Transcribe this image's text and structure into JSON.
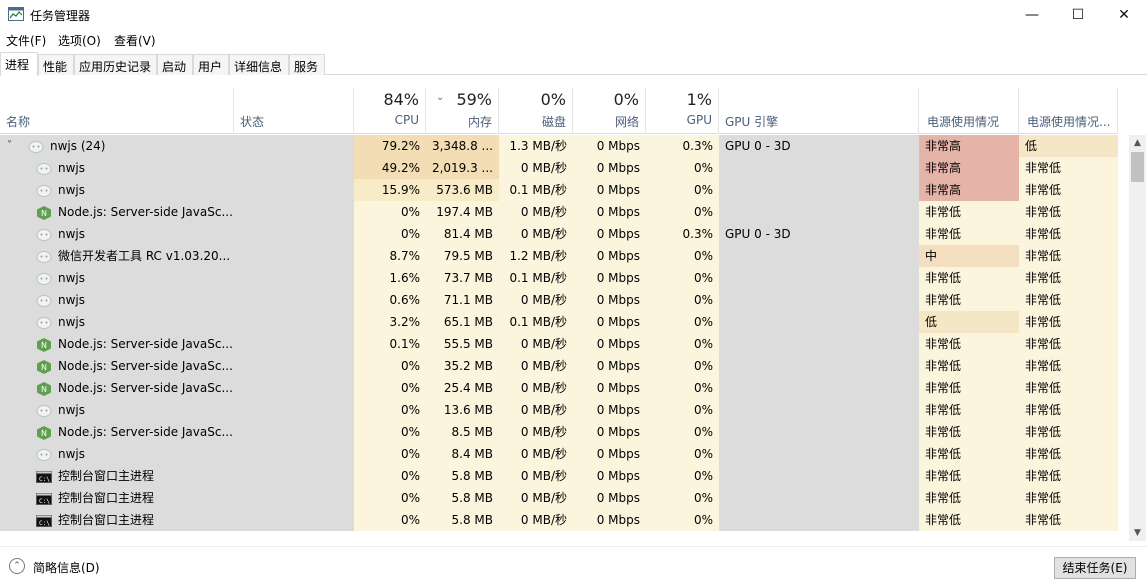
{
  "window": {
    "title": "任务管理器"
  },
  "window_controls": {
    "minimize": "—",
    "maximize": "☐",
    "close": "✕"
  },
  "menu": [
    "文件(F)",
    "选项(O)",
    "查看(V)"
  ],
  "tabs": [
    "进程",
    "性能",
    "应用历史记录",
    "启动",
    "用户",
    "详细信息",
    "服务"
  ],
  "header": {
    "name": "名称",
    "status": "状态",
    "cpu_pct": "84%",
    "cpu": "CPU",
    "mem_pct": "59%",
    "mem": "内存",
    "disk_pct": "0%",
    "disk": "磁盘",
    "net_pct": "0%",
    "net": "网络",
    "gpu_pct": "1%",
    "gpu": "GPU",
    "gpu_engine": "GPU 引擎",
    "power": "电源使用情况",
    "power_trend": "电源使用情况..."
  },
  "rows": [
    {
      "name": "nwjs (24)",
      "icon": "nwjs-icon",
      "expanded": true,
      "cpu": "79.2%",
      "mem": "3,348.8 ...",
      "disk": "1.3 MB/秒",
      "net": "0 Mbps",
      "gpu": "0.3%",
      "gpu_engine": "GPU 0 - 3D",
      "power": "非常高",
      "power_trend": "低"
    },
    {
      "name": "nwjs",
      "icon": "nwjs-icon",
      "cpu": "49.2%",
      "mem": "2,019.3 ...",
      "disk": "0 MB/秒",
      "net": "0 Mbps",
      "gpu": "0%",
      "gpu_engine": "",
      "power": "非常高",
      "power_trend": "非常低"
    },
    {
      "name": "nwjs",
      "icon": "nwjs-icon",
      "cpu": "15.9%",
      "mem": "573.6 MB",
      "disk": "0.1 MB/秒",
      "net": "0 Mbps",
      "gpu": "0%",
      "gpu_engine": "",
      "power": "非常高",
      "power_trend": "非常低"
    },
    {
      "name": "Node.js: Server-side JavaSc...",
      "icon": "nodejs-icon",
      "cpu": "0%",
      "mem": "197.4 MB",
      "disk": "0 MB/秒",
      "net": "0 Mbps",
      "gpu": "0%",
      "gpu_engine": "",
      "power": "非常低",
      "power_trend": "非常低"
    },
    {
      "name": "nwjs",
      "icon": "nwjs-icon",
      "cpu": "0%",
      "mem": "81.4 MB",
      "disk": "0 MB/秒",
      "net": "0 Mbps",
      "gpu": "0.3%",
      "gpu_engine": "GPU 0 - 3D",
      "power": "非常低",
      "power_trend": "非常低"
    },
    {
      "name": "微信开发者工具 RC v1.03.20...",
      "icon": "nwjs-icon",
      "cpu": "8.7%",
      "mem": "79.5 MB",
      "disk": "1.2 MB/秒",
      "net": "0 Mbps",
      "gpu": "0%",
      "gpu_engine": "",
      "power": "中",
      "power_trend": "非常低"
    },
    {
      "name": "nwjs",
      "icon": "nwjs-icon",
      "cpu": "1.6%",
      "mem": "73.7 MB",
      "disk": "0.1 MB/秒",
      "net": "0 Mbps",
      "gpu": "0%",
      "gpu_engine": "",
      "power": "非常低",
      "power_trend": "非常低"
    },
    {
      "name": "nwjs",
      "icon": "nwjs-icon",
      "cpu": "0.6%",
      "mem": "71.1 MB",
      "disk": "0 MB/秒",
      "net": "0 Mbps",
      "gpu": "0%",
      "gpu_engine": "",
      "power": "非常低",
      "power_trend": "非常低"
    },
    {
      "name": "nwjs",
      "icon": "nwjs-icon",
      "cpu": "3.2%",
      "mem": "65.1 MB",
      "disk": "0.1 MB/秒",
      "net": "0 Mbps",
      "gpu": "0%",
      "gpu_engine": "",
      "power": "低",
      "power_trend": "非常低"
    },
    {
      "name": "Node.js: Server-side JavaSc...",
      "icon": "nodejs-icon",
      "cpu": "0.1%",
      "mem": "55.5 MB",
      "disk": "0 MB/秒",
      "net": "0 Mbps",
      "gpu": "0%",
      "gpu_engine": "",
      "power": "非常低",
      "power_trend": "非常低"
    },
    {
      "name": "Node.js: Server-side JavaSc...",
      "icon": "nodejs-icon",
      "cpu": "0%",
      "mem": "35.2 MB",
      "disk": "0 MB/秒",
      "net": "0 Mbps",
      "gpu": "0%",
      "gpu_engine": "",
      "power": "非常低",
      "power_trend": "非常低"
    },
    {
      "name": "Node.js: Server-side JavaSc...",
      "icon": "nodejs-icon",
      "cpu": "0%",
      "mem": "25.4 MB",
      "disk": "0 MB/秒",
      "net": "0 Mbps",
      "gpu": "0%",
      "gpu_engine": "",
      "power": "非常低",
      "power_trend": "非常低"
    },
    {
      "name": "nwjs",
      "icon": "nwjs-icon",
      "cpu": "0%",
      "mem": "13.6 MB",
      "disk": "0 MB/秒",
      "net": "0 Mbps",
      "gpu": "0%",
      "gpu_engine": "",
      "power": "非常低",
      "power_trend": "非常低"
    },
    {
      "name": "Node.js: Server-side JavaSc...",
      "icon": "nodejs-icon",
      "cpu": "0%",
      "mem": "8.5 MB",
      "disk": "0 MB/秒",
      "net": "0 Mbps",
      "gpu": "0%",
      "gpu_engine": "",
      "power": "非常低",
      "power_trend": "非常低"
    },
    {
      "name": "nwjs",
      "icon": "nwjs-icon",
      "cpu": "0%",
      "mem": "8.4 MB",
      "disk": "0 MB/秒",
      "net": "0 Mbps",
      "gpu": "0%",
      "gpu_engine": "",
      "power": "非常低",
      "power_trend": "非常低"
    },
    {
      "name": "控制台窗口主进程",
      "icon": "console-icon",
      "cpu": "0%",
      "mem": "5.8 MB",
      "disk": "0 MB/秒",
      "net": "0 Mbps",
      "gpu": "0%",
      "gpu_engine": "",
      "power": "非常低",
      "power_trend": "非常低"
    },
    {
      "name": "控制台窗口主进程",
      "icon": "console-icon",
      "cpu": "0%",
      "mem": "5.8 MB",
      "disk": "0 MB/秒",
      "net": "0 Mbps",
      "gpu": "0%",
      "gpu_engine": "",
      "power": "非常低",
      "power_trend": "非常低"
    },
    {
      "name": "控制台窗口主进程",
      "icon": "console-icon",
      "cpu": "0%",
      "mem": "5.8 MB",
      "disk": "0 MB/秒",
      "net": "0 Mbps",
      "gpu": "0%",
      "gpu_engine": "",
      "power": "非常低",
      "power_trend": "非常低"
    }
  ],
  "footer": {
    "fewer_details": "简略信息(D)",
    "end_task": "结束任务(E)"
  }
}
